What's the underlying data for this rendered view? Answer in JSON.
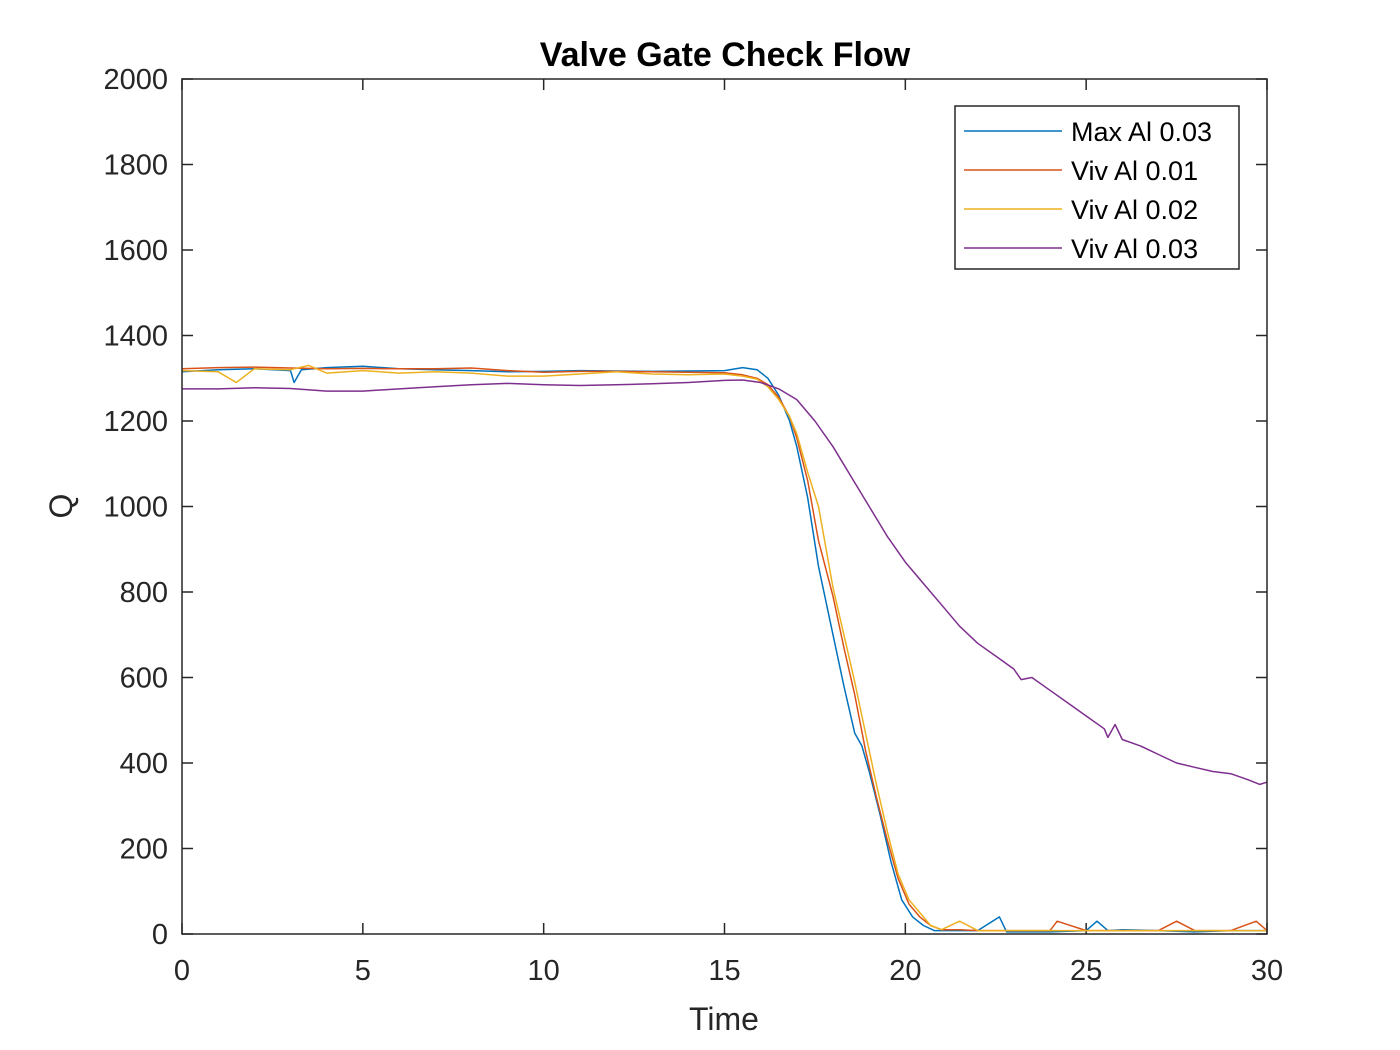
{
  "chart_data": {
    "type": "line",
    "title": "Valve Gate Check Flow",
    "xlabel": "Time",
    "ylabel": "Q",
    "xlim": [
      0,
      30
    ],
    "ylim": [
      0,
      2000
    ],
    "xticks": [
      0,
      5,
      10,
      15,
      20,
      25,
      30
    ],
    "yticks": [
      0,
      200,
      400,
      600,
      800,
      1000,
      1200,
      1400,
      1600,
      1800,
      2000
    ],
    "grid": false,
    "legend_position": "top-right",
    "series": [
      {
        "name": "Max Al 0.03",
        "color": "#0072BD",
        "x": [
          0,
          1,
          2,
          3,
          3.1,
          3.3,
          4,
          5,
          6,
          7,
          8,
          9,
          10,
          11,
          12,
          13,
          14,
          15,
          15.5,
          15.9,
          16.2,
          16.5,
          16.8,
          17.0,
          17.3,
          17.6,
          18.0,
          18.3,
          18.6,
          18.8,
          19.0,
          19.3,
          19.6,
          19.9,
          20.2,
          20.5,
          20.8,
          21.2,
          22,
          22.6,
          22.8,
          23.5,
          24,
          25,
          25.3,
          25.6,
          26,
          27,
          28,
          29,
          30
        ],
        "y": [
          1315,
          1320,
          1322,
          1318,
          1290,
          1320,
          1325,
          1328,
          1322,
          1320,
          1318,
          1315,
          1316,
          1318,
          1317,
          1316,
          1317,
          1318,
          1325,
          1320,
          1300,
          1260,
          1200,
          1140,
          1020,
          860,
          700,
          580,
          470,
          440,
          380,
          280,
          170,
          80,
          40,
          20,
          8,
          8,
          8,
          40,
          5,
          5,
          5,
          8,
          30,
          8,
          10,
          8,
          5,
          8,
          8
        ]
      },
      {
        "name": "Viv Al 0.01",
        "color": "#D95319",
        "x": [
          0,
          1,
          2,
          3,
          4,
          5,
          6,
          7,
          8,
          9,
          10,
          11,
          12,
          13,
          14,
          15,
          15.5,
          15.9,
          16.2,
          16.5,
          16.8,
          17.0,
          17.3,
          17.6,
          18.0,
          18.3,
          18.6,
          18.9,
          19.2,
          19.5,
          19.8,
          20.1,
          20.4,
          20.7,
          21.0,
          21.5,
          22,
          23,
          24,
          24.2,
          25,
          26,
          27,
          27.5,
          28,
          29,
          29.7,
          30
        ],
        "y": [
          1322,
          1325,
          1326,
          1324,
          1322,
          1323,
          1322,
          1322,
          1324,
          1318,
          1314,
          1316,
          1316,
          1315,
          1314,
          1313,
          1308,
          1300,
          1285,
          1255,
          1210,
          1160,
          1060,
          920,
          790,
          670,
          560,
          430,
          320,
          220,
          130,
          70,
          40,
          20,
          10,
          10,
          8,
          8,
          8,
          30,
          8,
          8,
          8,
          30,
          8,
          8,
          30,
          8
        ]
      },
      {
        "name": "Viv Al 0.02",
        "color": "#EDB120",
        "x": [
          0,
          1,
          1.5,
          2,
          3,
          3.5,
          4,
          5,
          6,
          7,
          8,
          9,
          10,
          11,
          12,
          13,
          14,
          15,
          15.5,
          15.9,
          16.2,
          16.5,
          16.8,
          17.0,
          17.3,
          17.6,
          18.0,
          18.3,
          18.6,
          18.9,
          19.2,
          19.5,
          19.8,
          20.1,
          20.4,
          20.7,
          21.0,
          21.5,
          22,
          23,
          24,
          25,
          26,
          27,
          28,
          29,
          30
        ],
        "y": [
          1318,
          1315,
          1290,
          1322,
          1320,
          1330,
          1312,
          1318,
          1312,
          1315,
          1312,
          1305,
          1305,
          1310,
          1315,
          1310,
          1308,
          1310,
          1305,
          1298,
          1280,
          1250,
          1210,
          1170,
          1080,
          1000,
          810,
          700,
          590,
          470,
          350,
          240,
          140,
          80,
          50,
          20,
          10,
          30,
          8,
          8,
          8,
          8,
          8,
          8,
          8,
          8,
          8
        ]
      },
      {
        "name": "Viv Al 0.03",
        "color": "#7E2F8E",
        "x": [
          0,
          1,
          2,
          3,
          4,
          5,
          6,
          7,
          8,
          9,
          10,
          11,
          12,
          13,
          14,
          15,
          15.5,
          16.0,
          16.5,
          17.0,
          17.5,
          18.0,
          18.5,
          19.0,
          19.5,
          20.0,
          20.5,
          21.0,
          21.5,
          22.0,
          22.5,
          23.0,
          23.2,
          23.5,
          24.0,
          24.5,
          25.0,
          25.5,
          25.6,
          25.8,
          26.0,
          26.5,
          27.0,
          27.5,
          28.0,
          28.5,
          29.0,
          29.5,
          29.8,
          30
        ],
        "y": [
          1275,
          1275,
          1278,
          1276,
          1270,
          1270,
          1275,
          1280,
          1285,
          1288,
          1285,
          1283,
          1285,
          1287,
          1290,
          1295,
          1296,
          1290,
          1275,
          1250,
          1200,
          1140,
          1070,
          1000,
          930,
          870,
          820,
          770,
          720,
          680,
          650,
          620,
          595,
          600,
          570,
          540,
          510,
          480,
          460,
          490,
          455,
          440,
          420,
          400,
          390,
          380,
          375,
          360,
          350,
          355
        ]
      }
    ]
  }
}
